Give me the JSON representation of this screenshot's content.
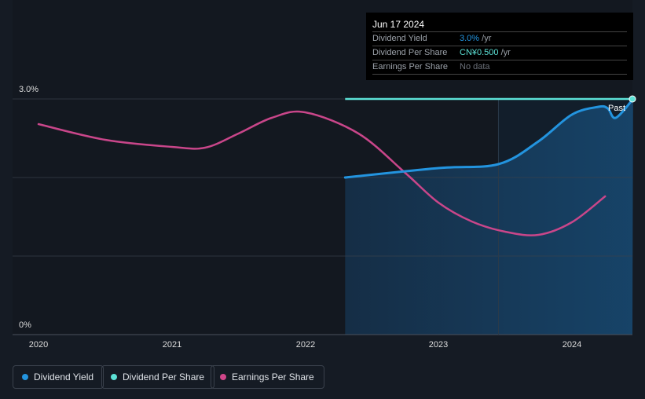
{
  "tooltip": {
    "date": "Jun 17 2024",
    "rows": [
      {
        "label": "Dividend Yield",
        "value": "3.0%",
        "unit": " /yr",
        "color": "#2394df"
      },
      {
        "label": "Dividend Per Share",
        "value": "CN¥0.500",
        "unit": " /yr",
        "color": "#5ce1d6"
      },
      {
        "label": "Earnings Per Share",
        "value": "No data",
        "unit": "",
        "color": "#777d86"
      }
    ]
  },
  "legend": [
    {
      "label": "Dividend Yield",
      "color": "#2394df"
    },
    {
      "label": "Dividend Per Share",
      "color": "#5ce1d6"
    },
    {
      "label": "Earnings Per Share",
      "color": "#d0468a"
    }
  ],
  "chart_data": {
    "type": "line",
    "y_ticks": [
      "3.0%",
      "0%"
    ],
    "ylim": [
      0,
      3
    ],
    "x_ticks": [
      "2020",
      "2021",
      "2022",
      "2023",
      "2024"
    ],
    "xlim": [
      2019.8,
      2024.46
    ],
    "past_label": "Past",
    "past_start": 2023.45,
    "series": [
      {
        "name": "Dividend Yield",
        "unit": "%",
        "x": [
          2022.3,
          2023.0,
          2023.45,
          2023.75,
          2024.0,
          2024.2,
          2024.27,
          2024.33,
          2024.46
        ],
        "y": [
          2.0,
          2.12,
          2.17,
          2.46,
          2.8,
          2.9,
          2.88,
          2.76,
          3.0
        ]
      },
      {
        "name": "Dividend Per Share",
        "unit": "CN¥",
        "x": [
          2022.3,
          2024.46
        ],
        "y": [
          0.5,
          0.5
        ]
      },
      {
        "name": "Earnings Per Share",
        "unit": "indexed",
        "x": [
          2020,
          2020.5,
          2021,
          2021.25,
          2021.5,
          2021.75,
          2022,
          2022.4,
          2022.75,
          2023,
          2023.25,
          2023.5,
          2023.75,
          2024,
          2024.25
        ],
        "y": [
          2.68,
          2.48,
          2.39,
          2.38,
          2.56,
          2.76,
          2.83,
          2.56,
          2.06,
          1.68,
          1.44,
          1.31,
          1.27,
          1.43,
          1.76
        ]
      }
    ]
  }
}
